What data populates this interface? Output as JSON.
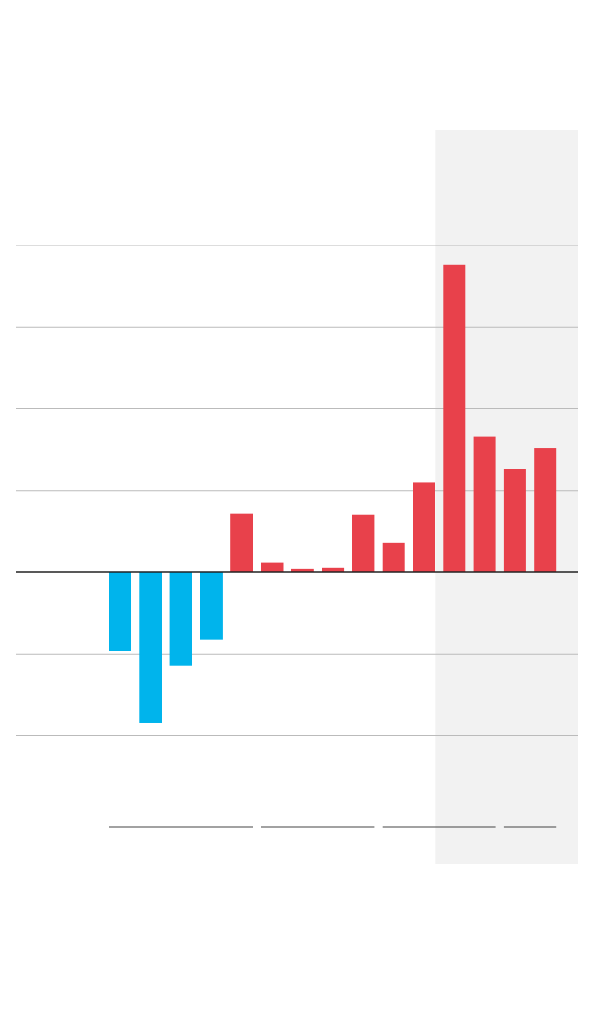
{
  "chart_data": {
    "type": "bar",
    "title": "",
    "xlabel": "",
    "ylabel": "",
    "values": [
      -4.8,
      -9.2,
      -5.7,
      -4.1,
      3.6,
      0.6,
      0.2,
      0.3,
      3.5,
      1.8,
      5.5,
      18.8,
      8.3,
      6.3,
      7.6
    ],
    "ylim": [
      -10,
      20
    ],
    "yticks": [
      -10,
      -5,
      0,
      5,
      10,
      15,
      20
    ],
    "colors": {
      "negative": "#00b4ec",
      "positive": "#e8414b",
      "highlight_band": "#f2f2f2",
      "grid": "#bbbbbb",
      "baseline": "#222222",
      "group_underline": "#444444"
    },
    "highlight_range": [
      11,
      14
    ],
    "groups": [
      [
        0,
        4
      ],
      [
        5,
        8
      ],
      [
        9,
        12
      ],
      [
        13,
        14
      ]
    ],
    "grid": true
  }
}
